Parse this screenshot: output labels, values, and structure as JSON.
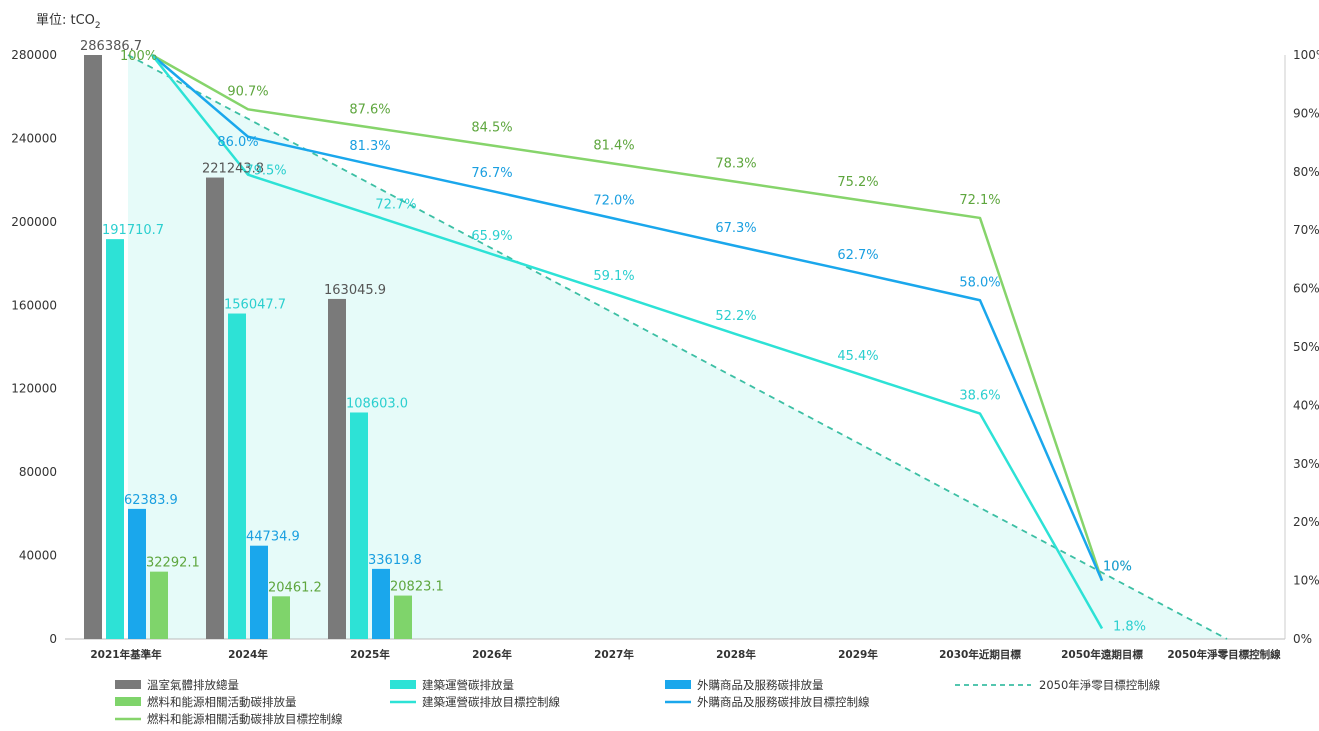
{
  "chart_data": {
    "type": "bar",
    "unit_label": "單位: tCO",
    "unit_sub": "2",
    "categories": [
      "2021年基準年",
      "2024年",
      "2025年",
      "2026年",
      "2027年",
      "2028年",
      "2029年",
      "2030年近期目標",
      "2050年遠期目標",
      "2050年淨零目標控制線"
    ],
    "ylim": [
      0,
      280000
    ],
    "y_ticks": [
      "0",
      "40000",
      "80000",
      "120000",
      "160000",
      "200000",
      "240000",
      "280000"
    ],
    "y2lim": [
      0,
      100
    ],
    "y2_ticks": [
      "0%",
      "10%",
      "20%",
      "30%",
      "40%",
      "50%",
      "60%",
      "70%",
      "80%",
      "90%",
      "100%"
    ],
    "bar_series": [
      {
        "name": "溫室氣體排放總量",
        "color": "#7a7a7a",
        "label_color": "#555555",
        "values": [
          286386.7,
          221243.8,
          163045.9
        ],
        "labels": [
          "286386.7",
          "221243.8",
          "163045.9"
        ]
      },
      {
        "name": "建築運營碳排放量",
        "color": "#2de2d6",
        "label_color": "#2bcfcf",
        "values": [
          191710.7,
          156047.7,
          108603.0
        ],
        "labels": [
          "191710.7",
          "156047.7",
          "108603.0"
        ]
      },
      {
        "name": "外購商品及服務碳排放量",
        "color": "#1aa7ec",
        "label_color": "#1a9fe0",
        "values": [
          62383.9,
          44734.9,
          33619.8
        ],
        "labels": [
          "62383.9",
          "44734.9",
          "33619.8"
        ]
      },
      {
        "name": "燃料和能源相關活動碳排放量",
        "color": "#7fd46b",
        "label_color": "#5ea63e",
        "values": [
          32292.1,
          20461.2,
          20823.1
        ],
        "labels": [
          "32292.1",
          "20461.2",
          "20823.1"
        ]
      }
    ],
    "line_series": [
      {
        "name": "燃料和能源相關活動碳排放目標控制線",
        "color": "#86d46b",
        "label_color": "#5ea63e",
        "values": [
          100,
          90.7,
          87.6,
          84.5,
          81.4,
          78.3,
          75.2,
          72.1,
          10
        ],
        "labels": [
          "100%",
          "90.7%",
          "87.6%",
          "84.5%",
          "81.4%",
          "78.3%",
          "75.2%",
          "72.1%",
          "10%"
        ]
      },
      {
        "name": "外購商品及服務碳排放目標控制線",
        "color": "#1aa7ec",
        "label_color": "#1a9fe0",
        "values": [
          100,
          86.0,
          81.3,
          76.7,
          72.0,
          67.3,
          62.7,
          58.0,
          10
        ],
        "labels": [
          "",
          "86.0%",
          "81.3%",
          "76.7%",
          "72.0%",
          "67.3%",
          "62.7%",
          "58.0%",
          "10%"
        ]
      },
      {
        "name": "建築運營碳排放目標控制線",
        "color": "#2de2d6",
        "label_color": "#2bcfcf",
        "values": [
          100,
          79.5,
          72.7,
          65.9,
          59.1,
          52.2,
          45.4,
          38.6,
          1.8
        ],
        "labels": [
          "",
          "79.5%",
          "72.7%",
          "65.9%",
          "59.1%",
          "52.2%",
          "45.4%",
          "38.6%",
          "1.8%"
        ]
      }
    ],
    "dashed_series": {
      "name": "2050年淨零目標控制線",
      "color": "#3cbfa4",
      "area_fill": "#e6fbf9",
      "values": [
        100,
        0
      ]
    },
    "legend_position": "bottom",
    "grid": false
  }
}
